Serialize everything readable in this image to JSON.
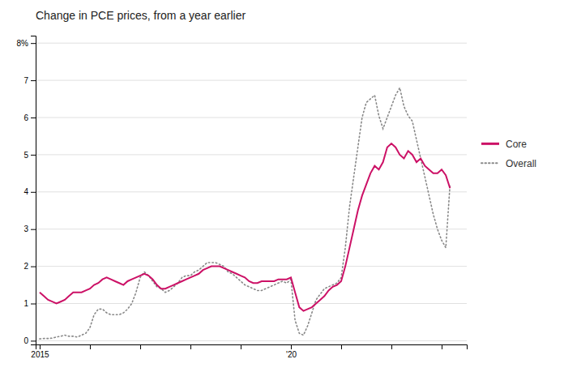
{
  "chart_data": {
    "type": "line",
    "title": "Change in PCE prices, from a year earlier",
    "x": [
      2015.0,
      2015.083,
      2015.167,
      2015.25,
      2015.333,
      2015.417,
      2015.5,
      2015.583,
      2015.667,
      2015.75,
      2015.833,
      2015.917,
      2016.0,
      2016.083,
      2016.167,
      2016.25,
      2016.333,
      2016.417,
      2016.5,
      2016.583,
      2016.667,
      2016.75,
      2016.833,
      2016.917,
      2017.0,
      2017.083,
      2017.167,
      2017.25,
      2017.333,
      2017.417,
      2017.5,
      2017.583,
      2017.667,
      2017.75,
      2017.833,
      2017.917,
      2018.0,
      2018.083,
      2018.167,
      2018.25,
      2018.333,
      2018.417,
      2018.5,
      2018.583,
      2018.667,
      2018.75,
      2018.833,
      2018.917,
      2019.0,
      2019.083,
      2019.167,
      2019.25,
      2019.333,
      2019.417,
      2019.5,
      2019.583,
      2019.667,
      2019.75,
      2019.833,
      2019.917,
      2020.0,
      2020.083,
      2020.167,
      2020.25,
      2020.333,
      2020.417,
      2020.5,
      2020.583,
      2020.667,
      2020.75,
      2020.833,
      2020.917,
      2021.0,
      2021.083,
      2021.167,
      2021.25,
      2021.333,
      2021.417,
      2021.5,
      2021.583,
      2021.667,
      2021.75,
      2021.833,
      2021.917,
      2022.0,
      2022.083,
      2022.167,
      2022.25,
      2022.333,
      2022.417,
      2022.5,
      2022.583,
      2022.667,
      2022.75,
      2022.833,
      2022.917,
      2023.0,
      2023.083,
      2023.167
    ],
    "series": [
      {
        "name": "Core",
        "color": "#CC1166",
        "line_style": "solid",
        "values": [
          1.3,
          1.2,
          1.1,
          1.05,
          1.0,
          1.05,
          1.1,
          1.2,
          1.3,
          1.3,
          1.3,
          1.35,
          1.4,
          1.5,
          1.55,
          1.65,
          1.7,
          1.65,
          1.6,
          1.55,
          1.5,
          1.6,
          1.65,
          1.7,
          1.75,
          1.8,
          1.75,
          1.65,
          1.5,
          1.4,
          1.4,
          1.45,
          1.5,
          1.55,
          1.6,
          1.65,
          1.7,
          1.75,
          1.8,
          1.9,
          1.95,
          2.0,
          2.0,
          2.0,
          1.95,
          1.9,
          1.85,
          1.8,
          1.75,
          1.7,
          1.6,
          1.55,
          1.55,
          1.6,
          1.6,
          1.6,
          1.6,
          1.65,
          1.65,
          1.65,
          1.7,
          1.3,
          0.9,
          0.8,
          0.85,
          0.9,
          1.0,
          1.1,
          1.2,
          1.35,
          1.45,
          1.5,
          1.6,
          2.0,
          2.5,
          3.0,
          3.5,
          3.9,
          4.2,
          4.5,
          4.7,
          4.6,
          4.8,
          5.2,
          5.3,
          5.2,
          5.0,
          4.9,
          5.1,
          5.0,
          4.8,
          4.9,
          4.7,
          4.6,
          4.5,
          4.5,
          4.6,
          4.45,
          4.1
        ]
      },
      {
        "name": "Overall",
        "color": "#888888",
        "line_style": "dotted",
        "values": [
          0.05,
          0.06,
          0.06,
          0.07,
          0.1,
          0.12,
          0.15,
          0.12,
          0.12,
          0.1,
          0.15,
          0.2,
          0.35,
          0.7,
          0.85,
          0.85,
          0.75,
          0.7,
          0.7,
          0.7,
          0.75,
          0.85,
          1.0,
          1.3,
          1.7,
          1.85,
          1.75,
          1.6,
          1.45,
          1.4,
          1.3,
          1.35,
          1.45,
          1.55,
          1.7,
          1.75,
          1.75,
          1.85,
          1.9,
          2.0,
          2.1,
          2.1,
          2.1,
          2.05,
          2.0,
          1.85,
          1.8,
          1.7,
          1.6,
          1.5,
          1.45,
          1.4,
          1.35,
          1.35,
          1.4,
          1.45,
          1.5,
          1.55,
          1.6,
          1.55,
          1.65,
          0.55,
          0.2,
          0.15,
          0.4,
          0.75,
          1.1,
          1.25,
          1.4,
          1.45,
          1.5,
          1.55,
          1.7,
          2.5,
          3.6,
          4.4,
          5.2,
          6.0,
          6.4,
          6.5,
          6.6,
          6.05,
          5.7,
          6.0,
          6.3,
          6.6,
          6.8,
          6.3,
          6.05,
          5.9,
          5.4,
          4.9,
          4.4,
          3.9,
          3.4,
          3.0,
          2.7,
          2.5,
          4.2
        ]
      }
    ],
    "xlim": [
      2014.92,
      2023.5
    ],
    "xticks": [
      2015,
      {
        "value": 2016,
        "label": null
      },
      {
        "value": 2017,
        "label": null
      },
      {
        "value": 2018,
        "label": null
      },
      {
        "value": 2019,
        "label": null
      },
      {
        "value": 2020,
        "label": "'20"
      },
      {
        "value": 2021,
        "label": null
      },
      {
        "value": 2022,
        "label": null
      },
      {
        "value": 2023,
        "label": null
      }
    ],
    "ylim": [
      -0.1,
      8.2
    ],
    "yticks": [
      0,
      1,
      2,
      3,
      4,
      5,
      6,
      7,
      {
        "value": 8,
        "label": "8%"
      }
    ],
    "grid": true,
    "legend": "right"
  }
}
